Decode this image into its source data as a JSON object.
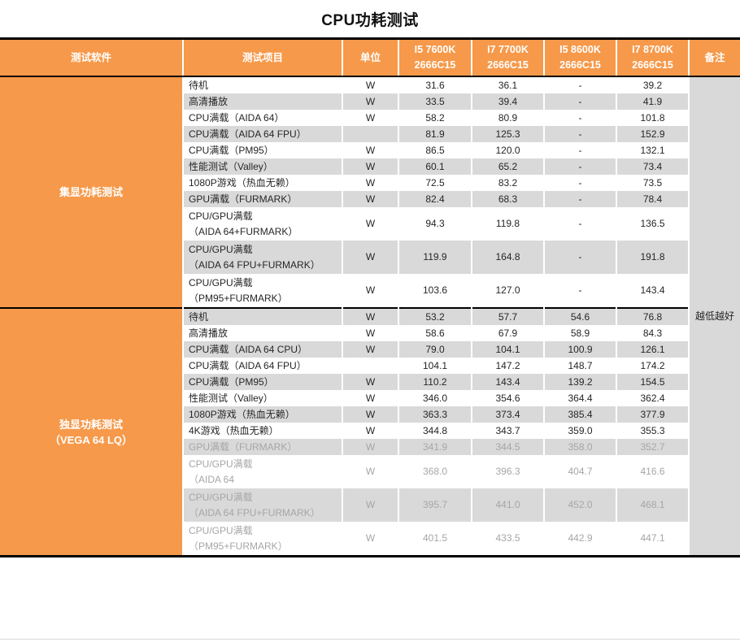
{
  "title": "CPU功耗测试",
  "colors": {
    "accent_orange": "#F6994A",
    "stripe_gray": "#D9D9D9",
    "muted_text": "#A6A6A6",
    "header_text": "#FFFFFF",
    "border_black": "#000000"
  },
  "chart_data": {
    "type": "table",
    "title": "CPU功耗测试",
    "header": {
      "software": "测试软件",
      "item": "测试项目",
      "unit": "单位",
      "cpus": [
        {
          "model": "I5 7600K",
          "memory": "2666C15"
        },
        {
          "model": "I7 7700K",
          "memory": "2666C15"
        },
        {
          "model": "I5 8600K",
          "memory": "2666C15"
        },
        {
          "model": "I7 8700K",
          "memory": "2666C15"
        }
      ],
      "remark": "备注"
    },
    "remark_note": "越低越好",
    "sections": [
      {
        "label_lines": [
          "集显功耗测试"
        ],
        "rows": [
          {
            "item_lines": [
              "待机"
            ],
            "unit": "W",
            "values": [
              "31.6",
              "36.1",
              "-",
              "39.2"
            ],
            "muted": false
          },
          {
            "item_lines": [
              "高清播放"
            ],
            "unit": "W",
            "values": [
              "33.5",
              "39.4",
              "-",
              "41.9"
            ],
            "muted": false
          },
          {
            "item_lines": [
              "CPU满载（AIDA 64）"
            ],
            "unit": "W",
            "values": [
              "58.2",
              "80.9",
              "-",
              "101.8"
            ],
            "muted": false
          },
          {
            "item_lines": [
              "CPU满载（AIDA 64 FPU）"
            ],
            "unit": "",
            "values": [
              "81.9",
              "125.3",
              "-",
              "152.9"
            ],
            "muted": false
          },
          {
            "item_lines": [
              "CPU满载（PM95）"
            ],
            "unit": "W",
            "values": [
              "86.5",
              "120.0",
              "-",
              "132.1"
            ],
            "muted": false
          },
          {
            "item_lines": [
              "性能测试（Valley）"
            ],
            "unit": "W",
            "values": [
              "60.1",
              "65.2",
              "-",
              "73.4"
            ],
            "muted": false
          },
          {
            "item_lines": [
              "1080P游戏（热血无赖）"
            ],
            "unit": "W",
            "values": [
              "72.5",
              "83.2",
              "-",
              "73.5"
            ],
            "muted": false
          },
          {
            "item_lines": [
              "GPU满载（FURMARK）"
            ],
            "unit": "W",
            "values": [
              "82.4",
              "68.3",
              "-",
              "78.4"
            ],
            "muted": false
          },
          {
            "item_lines": [
              "CPU/GPU满载",
              "（AIDA 64+FURMARK）"
            ],
            "unit": "W",
            "values": [
              "94.3",
              "119.8",
              "-",
              "136.5"
            ],
            "muted": false
          },
          {
            "item_lines": [
              "CPU/GPU满载",
              "（AIDA 64 FPU+FURMARK）"
            ],
            "unit": "W",
            "values": [
              "119.9",
              "164.8",
              "-",
              "191.8"
            ],
            "muted": false
          },
          {
            "item_lines": [
              "CPU/GPU满载",
              "（PM95+FURMARK）"
            ],
            "unit": "W",
            "values": [
              "103.6",
              "127.0",
              "-",
              "143.4"
            ],
            "muted": false
          }
        ]
      },
      {
        "label_lines": [
          "独显功耗测试",
          "（VEGA 64 LQ）"
        ],
        "rows": [
          {
            "item_lines": [
              "待机"
            ],
            "unit": "W",
            "values": [
              "53.2",
              "57.7",
              "54.6",
              "76.8"
            ],
            "muted": false
          },
          {
            "item_lines": [
              "高清播放"
            ],
            "unit": "W",
            "values": [
              "58.6",
              "67.9",
              "58.9",
              "84.3"
            ],
            "muted": false
          },
          {
            "item_lines": [
              "CPU满载（AIDA 64 CPU）"
            ],
            "unit": "W",
            "values": [
              "79.0",
              "104.1",
              "100.9",
              "126.1"
            ],
            "muted": false
          },
          {
            "item_lines": [
              "CPU满载（AIDA 64 FPU）"
            ],
            "unit": "",
            "values": [
              "104.1",
              "147.2",
              "148.7",
              "174.2"
            ],
            "muted": false
          },
          {
            "item_lines": [
              "CPU满载（PM95）"
            ],
            "unit": "W",
            "values": [
              "110.2",
              "143.4",
              "139.2",
              "154.5"
            ],
            "muted": false
          },
          {
            "item_lines": [
              "性能测试（Valley）"
            ],
            "unit": "W",
            "values": [
              "346.0",
              "354.6",
              "364.4",
              "362.4"
            ],
            "muted": false
          },
          {
            "item_lines": [
              "1080P游戏（热血无赖）"
            ],
            "unit": "W",
            "values": [
              "363.3",
              "373.4",
              "385.4",
              "377.9"
            ],
            "muted": false
          },
          {
            "item_lines": [
              "4K游戏（热血无赖）"
            ],
            "unit": "W",
            "values": [
              "344.8",
              "343.7",
              "359.0",
              "355.3"
            ],
            "muted": false
          },
          {
            "item_lines": [
              "GPU满载（FURMARK）"
            ],
            "unit": "W",
            "values": [
              "341.9",
              "344.5",
              "358.0",
              "352.7"
            ],
            "muted": true
          },
          {
            "item_lines": [
              "CPU/GPU满载",
              "（AIDA 64"
            ],
            "unit": "W",
            "values": [
              "368.0",
              "396.3",
              "404.7",
              "416.6"
            ],
            "muted": true
          },
          {
            "item_lines": [
              "CPU/GPU满载",
              "（AIDA 64 FPU+FURMARK）"
            ],
            "unit": "W",
            "values": [
              "395.7",
              "441.0",
              "452.0",
              "468.1"
            ],
            "muted": true
          },
          {
            "item_lines": [
              "CPU/GPU满载",
              "（PM95+FURMARK）"
            ],
            "unit": "W",
            "values": [
              "401.5",
              "433.5",
              "442.9",
              "447.1"
            ],
            "muted": true
          }
        ]
      }
    ]
  }
}
